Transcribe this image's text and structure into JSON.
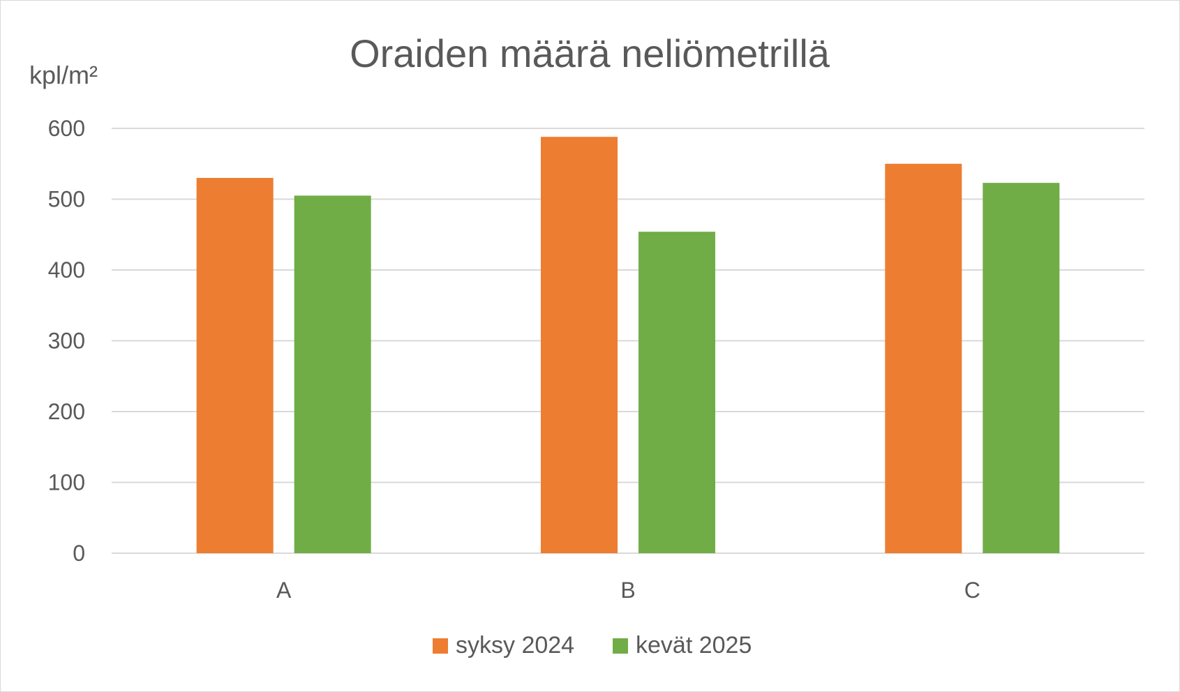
{
  "chart_data": {
    "type": "bar",
    "title": "Oraiden määrä neliömetrillä",
    "ylabel": "kpl/m²",
    "xlabel": "",
    "categories": [
      "A",
      "B",
      "C"
    ],
    "series": [
      {
        "name": "syksy 2024",
        "color": "#ED7D31",
        "values": [
          530,
          588,
          550
        ]
      },
      {
        "name": "kevät 2025",
        "color": "#70AD47",
        "values": [
          505,
          454,
          523
        ]
      }
    ],
    "ylim": [
      0,
      600
    ],
    "yticks": [
      0,
      100,
      200,
      300,
      400,
      500,
      600
    ],
    "grid": true,
    "legend_position": "bottom"
  }
}
